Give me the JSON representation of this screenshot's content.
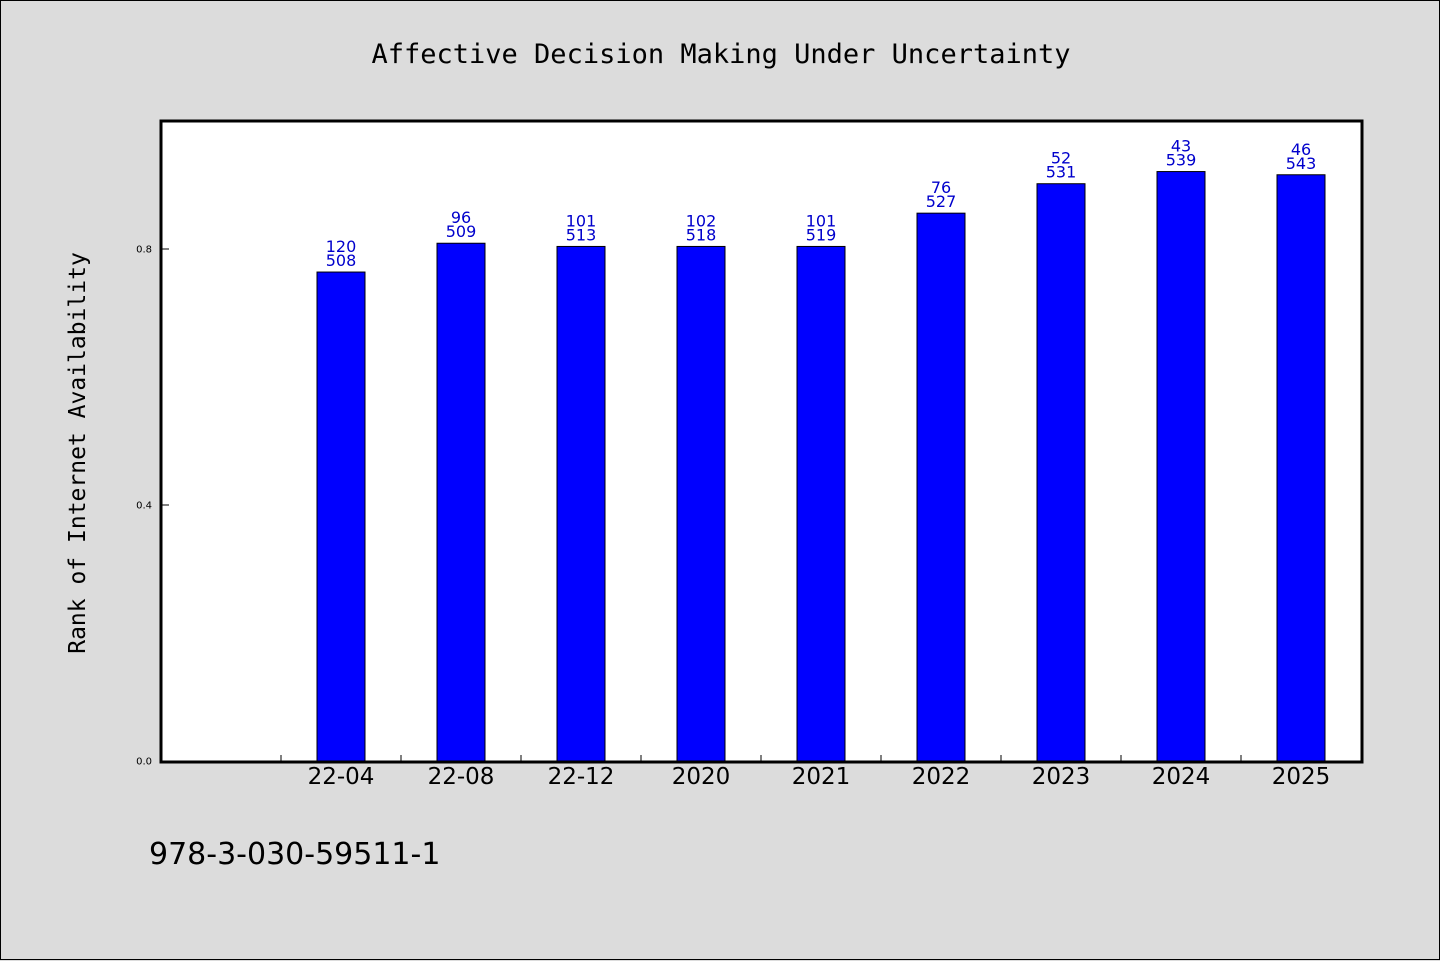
{
  "chart_data": {
    "type": "bar",
    "title": "Affective Decision Making Under Uncertainty",
    "xlabel": "",
    "ylabel": "Rank of Internet Availability",
    "categories": [
      "22-04",
      "22-08",
      "22-12",
      "2020",
      "2021",
      "2022",
      "2023",
      "2024",
      "2025"
    ],
    "values": [
      0.764,
      0.809,
      0.804,
      0.804,
      0.804,
      0.856,
      0.902,
      0.921,
      0.916
    ],
    "bar_labels_top": [
      "120",
      "96",
      "101",
      "102",
      "101",
      "76",
      "52",
      "43",
      "46"
    ],
    "bar_labels_bottom": [
      "508",
      "509",
      "513",
      "518",
      "519",
      "527",
      "531",
      "539",
      "543"
    ],
    "yticks": [
      "0.0",
      "0.4",
      "0.8"
    ],
    "ylim": [
      0,
      1.0
    ],
    "grid": false,
    "bar_color": "#0000ff",
    "label_color": "#0000cc"
  },
  "footer": "978-3-030-59511-1"
}
